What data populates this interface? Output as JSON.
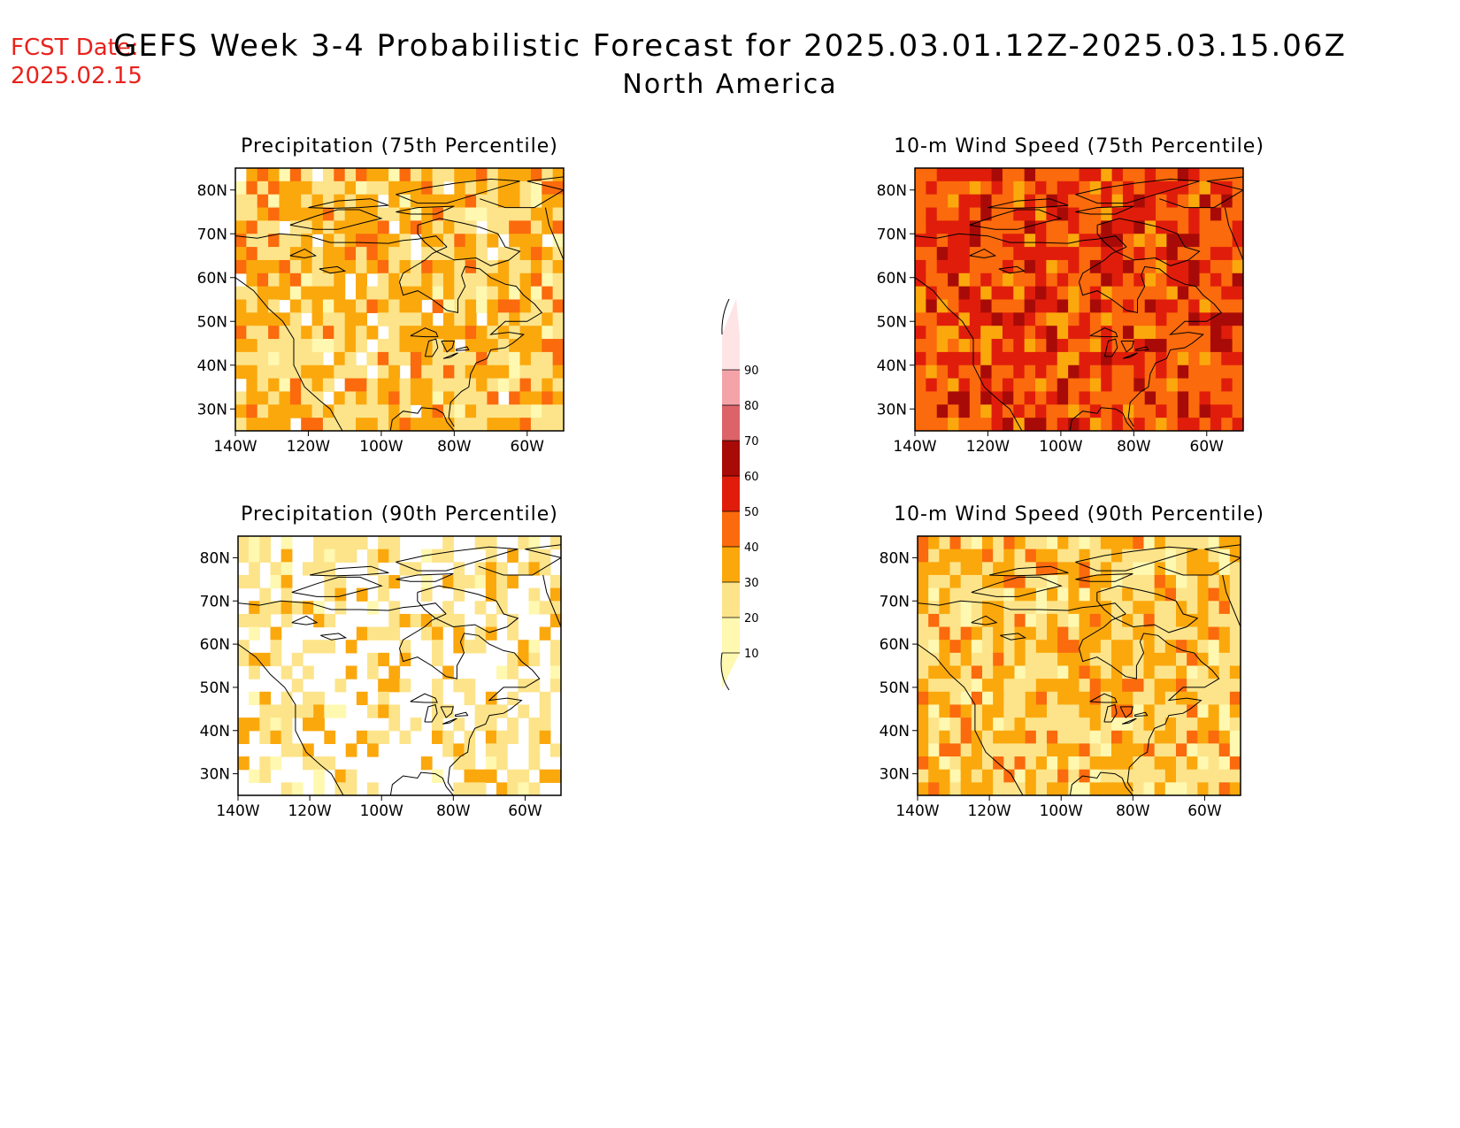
{
  "header": {
    "fcst_label": "FCST Date:",
    "fcst_date": "2025.02.15",
    "title": "GEFS Week 3-4 Probabilistic Forecast for 2025.03.01.12Z-2025.03.15.06Z",
    "subtitle": "North America"
  },
  "map_extent": {
    "lon": [
      -140,
      -50
    ],
    "lat": [
      25,
      85
    ]
  },
  "lat_ticks": [
    "30N",
    "40N",
    "50N",
    "60N",
    "70N",
    "80N"
  ],
  "lon_ticks": [
    "140W",
    "120W",
    "100W",
    "80W",
    "60W"
  ],
  "colorbar": {
    "levels": [
      "10",
      "20",
      "30",
      "40",
      "50",
      "60",
      "70",
      "80",
      "90"
    ],
    "colors": [
      "#fff8b0",
      "#fde48a",
      "#fba80d",
      "#fb6a0c",
      "#e01d0b",
      "#a80b07",
      "#dc6468",
      "#f4a4a8",
      "#ffe4e6"
    ]
  },
  "panels": [
    {
      "id": "precip75",
      "title": "Precipitation (75th Percentile)",
      "base_level": 1
    },
    {
      "id": "wind75",
      "title": "10-m Wind Speed (75th Percentile)",
      "base_level": 3
    },
    {
      "id": "precip90",
      "title": "Precipitation (90th Percentile)",
      "base_level": 0
    },
    {
      "id": "wind90",
      "title": "10-m Wind Speed (90th Percentile)",
      "base_level": 1
    }
  ]
}
